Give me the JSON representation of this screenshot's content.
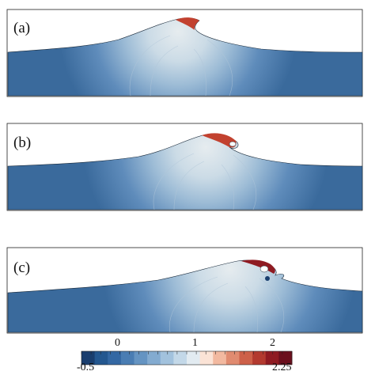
{
  "panels": [
    {
      "label": "(a)"
    },
    {
      "label": "(b)"
    },
    {
      "label": "(c)"
    }
  ],
  "colorbar": {
    "min_label": "-0.5",
    "max_label": "2.25",
    "tick_labels": [
      "0",
      "1",
      "2"
    ],
    "colors": [
      "#1a3e6e",
      "#24578f",
      "#3468a3",
      "#4a7db3",
      "#6594c2",
      "#83abd0",
      "#a2c2dd",
      "#c3d8e8",
      "#e2ebf1",
      "#fbe3d6",
      "#f2b9a0",
      "#e08b70",
      "#cd6049",
      "#b33a2f",
      "#8f1b22",
      "#6b0f1d"
    ]
  }
}
